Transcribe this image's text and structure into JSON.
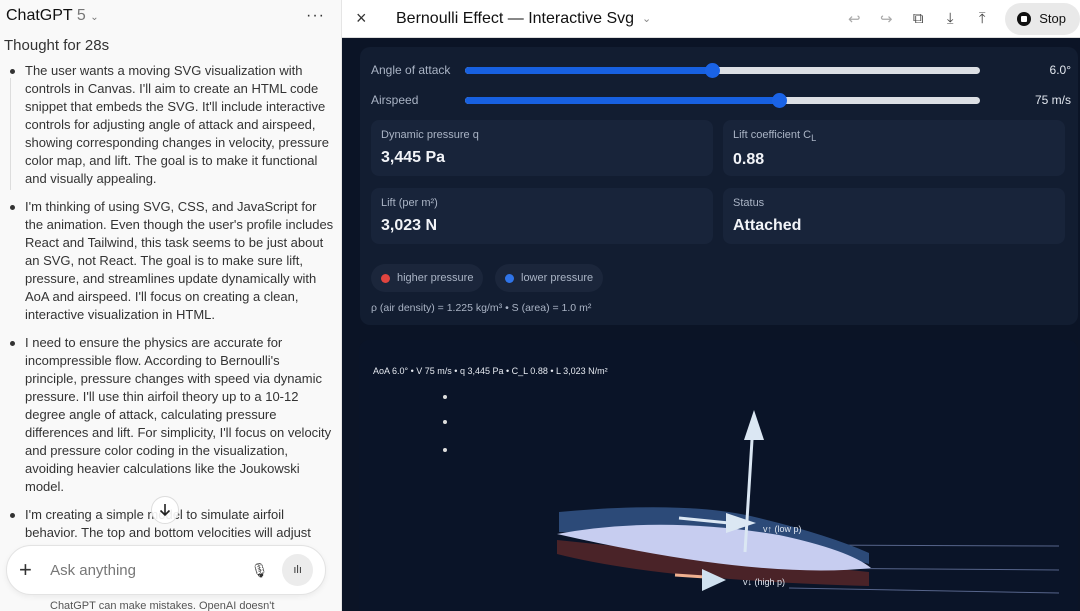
{
  "chat": {
    "model_name": "ChatGPT",
    "model_version": "5",
    "menu_icon": "more-horizontal-icon",
    "thought_label": "Thought for 28s",
    "bullets": [
      "The user wants a moving SVG visualization with controls in Canvas. I'll aim to create an HTML code snippet that embeds the SVG. It'll include interactive controls for adjusting angle of attack and airspeed, showing corresponding changes in velocity, pressure color map, and lift. The goal is to make it functional and visually appealing.",
      "I'm thinking of using SVG, CSS, and JavaScript for the animation. Even though the user's profile includes React and Tailwind, this task seems to be just about an SVG, not React. The goal is to make sure lift, pressure, and streamlines update dynamically with AoA and airspeed. I'll focus on creating a clean, interactive visualization in HTML.",
      "I need to ensure the physics are accurate for incompressible flow. According to Bernoulli's principle, pressure changes with speed via dynamic pressure. I'll use thin airfoil theory up to a 10-12 degree angle of attack, calculating pressure differences and lift. For simplicity, I'll focus on velocity and pressure color coding in the visualization, avoiding heavier calculations like the Joukowski model.",
      "I'm creating a simple model to simulate airfoil behavior. The top and bottom velocities will adjust"
    ],
    "scroll_down_icon": "arrow-down-icon",
    "composer": {
      "placeholder": "Ask anything",
      "plus_icon": "plus-icon",
      "mic_icon": "mic-icon",
      "voice_icon": "voice-wave-icon"
    },
    "disclaimer": "ChatGPT can make mistakes. OpenAI doesn't"
  },
  "canvas": {
    "title": "Bernoulli Effect — Interactive Svg",
    "toolbar": {
      "close": "×",
      "undo": "↩",
      "redo": "↪",
      "copy": "⧉",
      "download": "⤓",
      "share": "⤒",
      "stop_label": "Stop"
    },
    "sliders": [
      {
        "label": "Angle of attack",
        "value": "6.0°",
        "fill_percent": 48
      },
      {
        "label": "Airspeed",
        "value": "75 m/s",
        "fill_percent": 61
      }
    ],
    "cards": [
      {
        "label": "Dynamic pressure q",
        "value": "3,445 Pa"
      },
      {
        "label": "Lift coefficient C",
        "label_sub": "L",
        "value": "0.88"
      },
      {
        "label": "Lift (per m²)",
        "value": "3,023 N"
      },
      {
        "label": "Status",
        "value": "Attached"
      }
    ],
    "legend": [
      {
        "label": "higher pressure",
        "color": "#e0443f"
      },
      {
        "label": "lower pressure",
        "color": "#2f74e8"
      }
    ],
    "constants": "ρ (air density) = 1.225 kg/m³ • S (area) = 1.0 m²",
    "viz": {
      "caption": "AoA 6.0° • V 75 m/s • q 3,445 Pa • C_L 0.88 • L 3,023 N/m²",
      "upper_label": "v↑ (low p)",
      "lower_label": "v↓ (high p)"
    },
    "colors": {
      "accent": "#1760e0",
      "background": "#0b1426"
    }
  }
}
